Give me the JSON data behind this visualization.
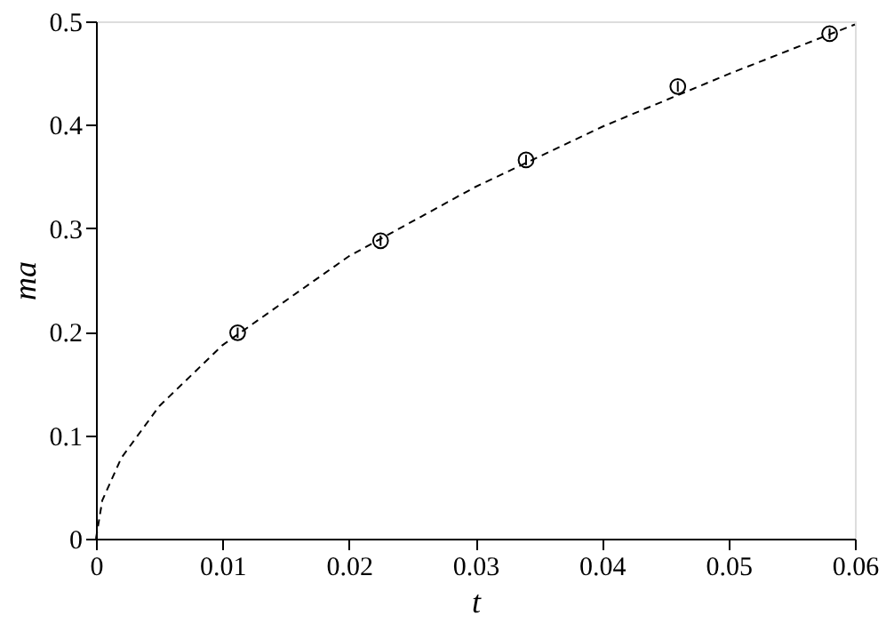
{
  "chart_data": {
    "type": "scatter",
    "xlabel": "t",
    "ylabel": "ma",
    "xlim": [
      0,
      0.06
    ],
    "ylim": [
      0,
      0.5
    ],
    "xticks": [
      0,
      0.01,
      0.02,
      0.03,
      0.04,
      0.05,
      0.06
    ],
    "yticks": [
      0,
      0.1,
      0.2,
      0.3,
      0.4,
      0.5
    ],
    "series": [
      {
        "color": "#000000",
        "marker": "circle",
        "x": [
          0.0112,
          0.0225,
          0.034,
          0.046,
          0.058
        ],
        "values": [
          0.199,
          0.288,
          0.366,
          0.437,
          0.488
        ],
        "errors": [
          0.005,
          0.005,
          0.005,
          0.005,
          0.005
        ]
      },
      {
        "type": "line",
        "color": "#000000",
        "marker": "none",
        "line_style": "dashed",
        "x": [
          0,
          0.0005,
          0.002,
          0.005,
          0.01,
          0.02,
          0.03,
          0.04,
          0.05,
          0.06
        ],
        "values": [
          0,
          0.037,
          0.078,
          0.128,
          0.187,
          0.273,
          0.34,
          0.398,
          0.449,
          0.497
        ]
      }
    ]
  }
}
